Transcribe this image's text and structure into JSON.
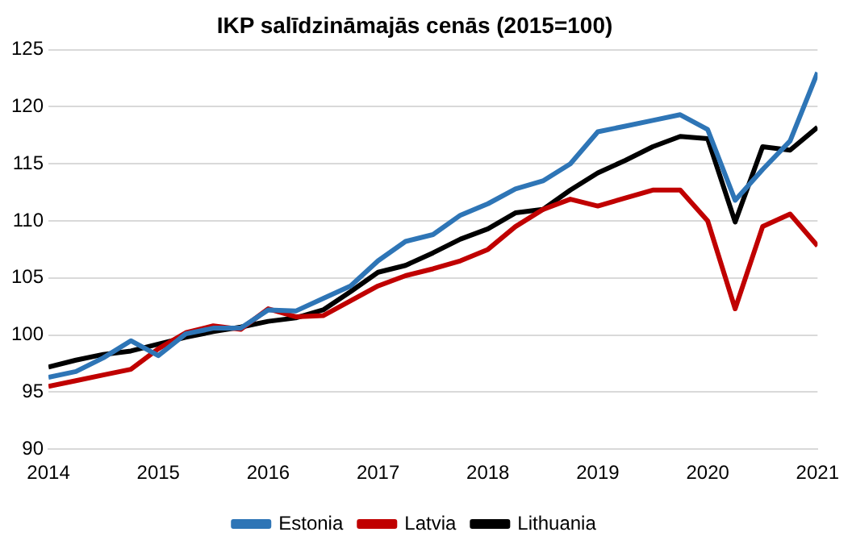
{
  "chart_data": {
    "type": "line",
    "title": "IKP salīdzināmajās cenās (2015=100)",
    "x": [
      2014,
      2014.25,
      2014.5,
      2014.75,
      2015,
      2015.25,
      2015.5,
      2015.75,
      2016,
      2016.25,
      2016.5,
      2016.75,
      2017,
      2017.25,
      2017.5,
      2017.75,
      2018,
      2018.25,
      2018.5,
      2018.75,
      2019,
      2019.25,
      2019.5,
      2019.75,
      2020,
      2020.25,
      2020.5,
      2020.75,
      2021
    ],
    "series": [
      {
        "name": "Estonia",
        "color": "#2e75b6",
        "values": [
          96.3,
          96.8,
          98,
          99.5,
          98.2,
          100.1,
          100.6,
          100.6,
          102.2,
          102.1,
          103.2,
          104.3,
          106.5,
          108.2,
          108.8,
          110.5,
          111.5,
          112.8,
          113.5,
          115,
          117.8,
          118.3,
          118.8,
          119.3,
          118,
          111.8,
          114.5,
          117,
          123
        ]
      },
      {
        "name": "Latvia",
        "color": "#c00000",
        "values": [
          95.5,
          96,
          96.5,
          97,
          98.8,
          100.2,
          100.8,
          100.5,
          102.3,
          101.6,
          101.7,
          103,
          104.3,
          105.2,
          105.8,
          106.5,
          107.5,
          109.5,
          111,
          111.9,
          111.3,
          112,
          112.7,
          112.7,
          110,
          102.3,
          109.5,
          110.6,
          107.8
        ]
      },
      {
        "name": "Lithuania",
        "color": "#000000",
        "values": [
          97.2,
          97.8,
          98.3,
          98.6,
          99.2,
          99.8,
          100.3,
          100.7,
          101.2,
          101.5,
          102.2,
          103.8,
          105.5,
          106.1,
          107.2,
          108.4,
          109.3,
          110.7,
          111,
          112.7,
          114.2,
          115.3,
          116.5,
          117.4,
          117.2,
          109.9,
          116.5,
          116.2,
          118.2
        ]
      }
    ],
    "xlim": [
      2014,
      2021
    ],
    "xticks": [
      2014,
      2015,
      2016,
      2017,
      2018,
      2019,
      2020,
      2021
    ],
    "ylim": [
      90,
      125
    ],
    "yticks": [
      90,
      95,
      100,
      105,
      110,
      115,
      120,
      125
    ],
    "grid": "y",
    "legend": "bottom",
    "marker": "none",
    "line_style": "solid"
  }
}
